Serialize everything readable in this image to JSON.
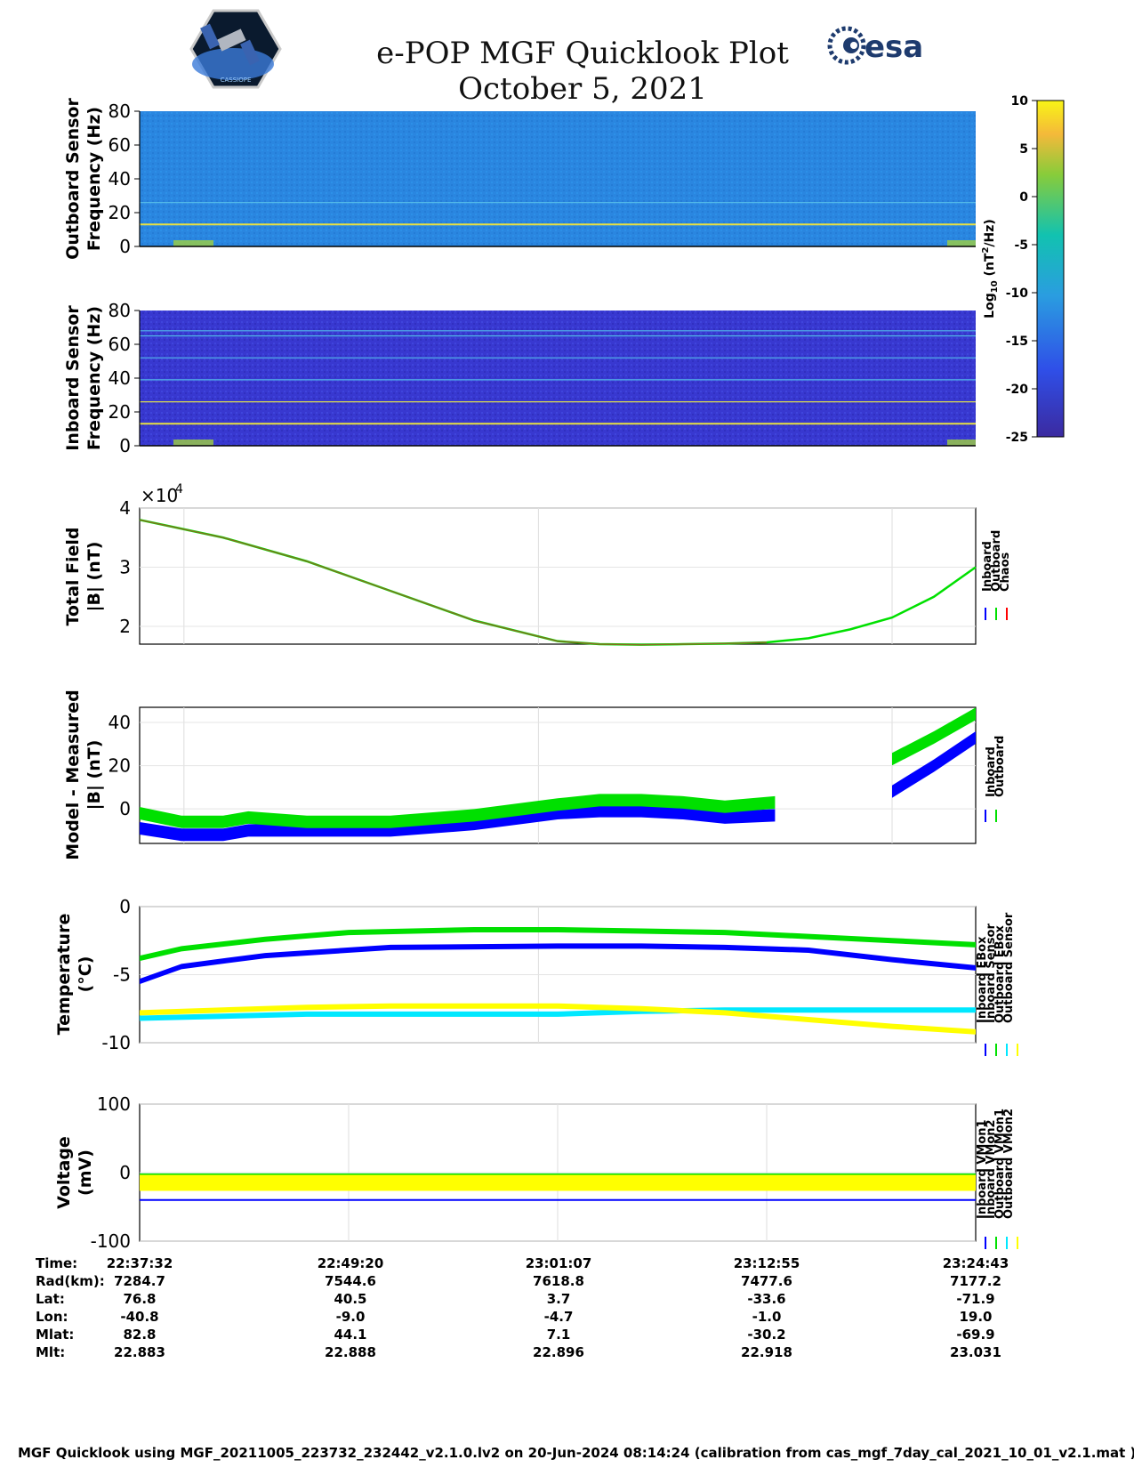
{
  "title": {
    "line1": "e-POP MGF Quicklook Plot",
    "line2": "October 5, 2021"
  },
  "logos": {
    "cassiope_text": "CASSIOPE",
    "esa_text": "esa"
  },
  "colors": {
    "inboard": "#0000ff",
    "outboard": "#00e000",
    "chaos": "#ff0000",
    "cyan": "#00e8ff",
    "yellow": "#ffff00",
    "spec_bg_out": "#2a86e0",
    "spec_bg_in": "#3838d0"
  },
  "colorbar": {
    "label": "Log10 (nT2/Hz)",
    "ticks": [
      "10",
      "5",
      "0",
      "-5",
      "-10",
      "-15",
      "-20",
      "-25"
    ],
    "range": [
      -25,
      10
    ]
  },
  "chart_data": [
    {
      "type": "heatmap",
      "name": "outboard-spectrogram",
      "ylabel": "Outboard Sensor\nFrequency (Hz)",
      "yticks": [
        "80",
        "60",
        "40",
        "20",
        "0"
      ],
      "ylim": [
        0,
        80
      ],
      "lines_hz": [
        13,
        26
      ]
    },
    {
      "type": "heatmap",
      "name": "inboard-spectrogram",
      "ylabel": "Inboard Sensor\nFrequency (Hz)",
      "yticks": [
        "80",
        "60",
        "40",
        "20",
        "0"
      ],
      "ylim": [
        0,
        80
      ],
      "lines_hz": [
        13,
        26,
        39,
        52,
        65,
        68
      ]
    },
    {
      "type": "line",
      "name": "total-field",
      "ylabel": "Total Field\n|B| (nT)",
      "exponent": "×10",
      "exponent_power": "4",
      "yticks": [
        "4",
        "3",
        "2"
      ],
      "ylim": [
        1.7,
        4.0
      ],
      "legend": [
        "Inboard",
        "Outboard",
        "Chaos"
      ],
      "x": [
        0,
        0.05,
        0.1,
        0.2,
        0.3,
        0.4,
        0.5,
        0.55,
        0.6,
        0.65,
        0.7,
        0.75,
        0.8,
        0.85,
        0.9,
        0.95,
        1.0
      ],
      "y": [
        3.8,
        3.65,
        3.5,
        3.1,
        2.6,
        2.1,
        1.75,
        1.7,
        1.69,
        1.7,
        1.71,
        1.73,
        1.8,
        1.95,
        2.15,
        2.5,
        3.0
      ]
    },
    {
      "type": "line",
      "name": "model-minus-measured",
      "ylabel": "Model - Measured\n|B| (nT)",
      "yticks": [
        "40",
        "20",
        "0"
      ],
      "ylim": [
        -16,
        47
      ],
      "legend": [
        "Inboard",
        "Outboard"
      ],
      "gap": [
        0.76,
        0.9
      ],
      "series": [
        {
          "name": "Inboard",
          "x": [
            0,
            0.05,
            0.1,
            0.13,
            0.2,
            0.3,
            0.4,
            0.5,
            0.55,
            0.6,
            0.65,
            0.7,
            0.76,
            0.9,
            0.95,
            1.0
          ],
          "y": [
            -9,
            -12,
            -12,
            -10,
            -10,
            -10,
            -7,
            -2,
            -1,
            -1,
            -2,
            -4,
            -3,
            8,
            20,
            33
          ]
        },
        {
          "name": "Outboard",
          "x": [
            0,
            0.05,
            0.1,
            0.13,
            0.2,
            0.3,
            0.4,
            0.5,
            0.55,
            0.6,
            0.65,
            0.7,
            0.76,
            0.9,
            0.95,
            1.0
          ],
          "y": [
            -2,
            -6,
            -6,
            -4,
            -6,
            -6,
            -3,
            2,
            4,
            4,
            3,
            1,
            3,
            23,
            33,
            44
          ]
        }
      ]
    },
    {
      "type": "line",
      "name": "temperature",
      "ylabel": "Temperature\n(°C)",
      "yticks": [
        "0",
        "-5",
        "-10"
      ],
      "ylim": [
        -10,
        0
      ],
      "legend": [
        "Inboard EBox",
        "Inboard Sensor",
        "Outboard EBox",
        "Outboard Sensor"
      ],
      "series": [
        {
          "name": "Inboard EBox",
          "x": [
            0,
            0.05,
            0.15,
            0.25,
            0.4,
            0.5,
            0.6,
            0.7,
            0.8,
            0.9,
            1.0
          ],
          "y": [
            -3.8,
            -3.1,
            -2.4,
            -1.9,
            -1.7,
            -1.7,
            -1.8,
            -1.9,
            -2.2,
            -2.5,
            -2.8
          ]
        },
        {
          "name": "Inboard Sensor",
          "x": [
            0,
            0.05,
            0.15,
            0.3,
            0.5,
            0.6,
            0.7,
            0.8,
            0.9,
            1.0
          ],
          "y": [
            -5.5,
            -4.4,
            -3.6,
            -3.0,
            -2.9,
            -2.9,
            -3.0,
            -3.2,
            -3.9,
            -4.5
          ]
        },
        {
          "name": "Outboard EBox",
          "x": [
            0,
            0.2,
            0.4,
            0.5,
            0.6,
            0.7,
            0.8,
            0.9,
            1.0
          ],
          "y": [
            -8.2,
            -7.9,
            -7.9,
            -7.9,
            -7.7,
            -7.6,
            -7.6,
            -7.6,
            -7.6
          ]
        },
        {
          "name": "Outboard Sensor",
          "x": [
            0,
            0.1,
            0.2,
            0.3,
            0.5,
            0.6,
            0.7,
            0.8,
            0.9,
            1.0
          ],
          "y": [
            -7.8,
            -7.6,
            -7.4,
            -7.3,
            -7.3,
            -7.5,
            -7.8,
            -8.3,
            -8.8,
            -9.2
          ]
        }
      ]
    },
    {
      "type": "line",
      "name": "voltage",
      "ylabel": "Voltage\n(mV)",
      "yticks": [
        "100",
        "0",
        "-100"
      ],
      "ylim": [
        -100,
        100
      ],
      "legend": [
        "Inboard VMon1",
        "Inboard VMon2",
        "Outboard VMon1",
        "Outboard VMon2"
      ],
      "series": [
        {
          "name": "Inboard VMon1",
          "level": -40
        },
        {
          "name": "Inboard VMon2",
          "level": -5
        },
        {
          "name": "Outboard VMon1",
          "level": -8
        },
        {
          "name": "Outboard VMon2",
          "level": -15
        }
      ]
    }
  ],
  "time_table": {
    "row_labels": [
      "Time:",
      "Rad(km):",
      "Lat:",
      "Lon:",
      "Mlat:",
      "Mlt:"
    ],
    "columns": [
      [
        "22:37:32",
        "7284.7",
        "76.8",
        "-40.8",
        "82.8",
        "22.883"
      ],
      [
        "22:49:20",
        "7544.6",
        "40.5",
        "-9.0",
        "44.1",
        "22.888"
      ],
      [
        "23:01:07",
        "7618.8",
        "3.7",
        "-4.7",
        "7.1",
        "22.896"
      ],
      [
        "23:12:55",
        "7477.6",
        "-33.6",
        "-1.0",
        "-30.2",
        "22.918"
      ],
      [
        "23:24:43",
        "7177.2",
        "-71.9",
        "19.0",
        "-69.9",
        "23.031"
      ]
    ]
  },
  "footer": "MGF Quicklook using MGF_20211005_223732_232442_v2.1.0.lv2 on 20-Jun-2024 08:14:24 (calibration from cas_mgf_7day_cal_2021_10_01_v2.1.mat )"
}
